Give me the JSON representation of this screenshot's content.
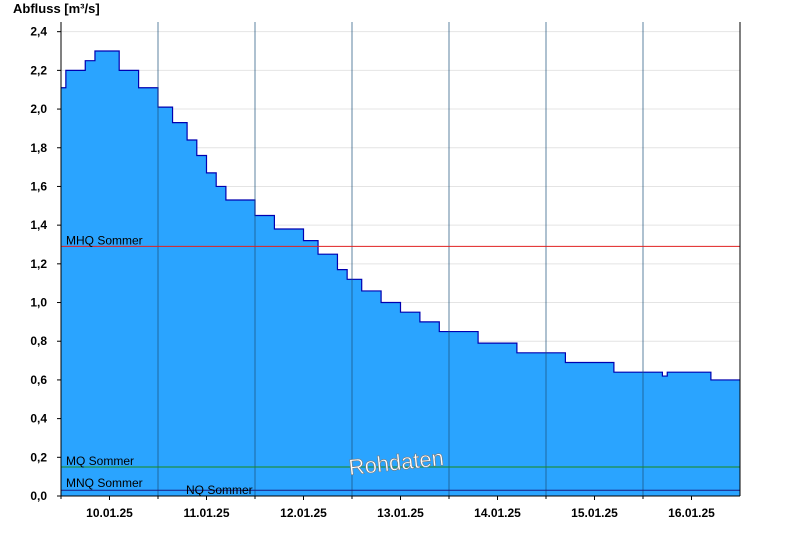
{
  "chart_data": {
    "type": "area",
    "ylabel": "Abfluss [m³/s]",
    "ylim": [
      0,
      2.45
    ],
    "y_ticks": [
      "0,0",
      "0,2",
      "0,4",
      "0,6",
      "0,8",
      "1,0",
      "1,2",
      "1,4",
      "1,6",
      "1,8",
      "2,0",
      "2,2",
      "2,4"
    ],
    "x_ticks": [
      "10.01.25",
      "11.01.25",
      "12.01.25",
      "13.01.25",
      "14.01.25",
      "15.01.25",
      "16.01.25"
    ],
    "xlim_days": [
      9.5,
      16.5
    ],
    "grid": true,
    "series": [
      {
        "x": [
          9.5,
          9.55,
          9.6,
          9.75,
          9.85,
          10.1,
          10.3,
          10.5,
          10.65,
          10.8,
          10.9,
          11.0,
          11.1,
          11.2,
          11.3,
          11.5,
          11.7,
          12.0,
          12.15,
          12.35,
          12.45,
          12.5,
          12.6,
          12.8,
          13.0,
          13.2,
          13.4,
          13.8,
          14.0,
          14.2,
          14.7,
          15.0,
          15.2,
          15.7,
          15.75,
          16.0,
          16.2,
          16.5
        ],
        "y": [
          2.11,
          2.2,
          2.2,
          2.25,
          2.3,
          2.2,
          2.11,
          2.01,
          1.93,
          1.84,
          1.76,
          1.67,
          1.6,
          1.53,
          1.53,
          1.45,
          1.38,
          1.32,
          1.25,
          1.17,
          1.12,
          1.12,
          1.06,
          1.0,
          0.95,
          0.9,
          0.85,
          0.79,
          0.79,
          0.74,
          0.69,
          0.69,
          0.64,
          0.62,
          0.64,
          0.64,
          0.6,
          0.6
        ],
        "color": "#2aa4ff",
        "line_color": "#0000b0"
      }
    ],
    "reference_lines": [
      {
        "label": "MHQ Sommer",
        "value": 1.29,
        "color": "#e02020"
      },
      {
        "label": "MQ Sommer",
        "value": 0.15,
        "color": "#1a8a1a"
      },
      {
        "label": "MNQ Sommer",
        "value": 0.03,
        "color": "#1a1a80"
      },
      {
        "label": "NQ Sommer",
        "value": 0.03,
        "color": "#1a1a80"
      }
    ],
    "watermark": "Rohdaten"
  }
}
